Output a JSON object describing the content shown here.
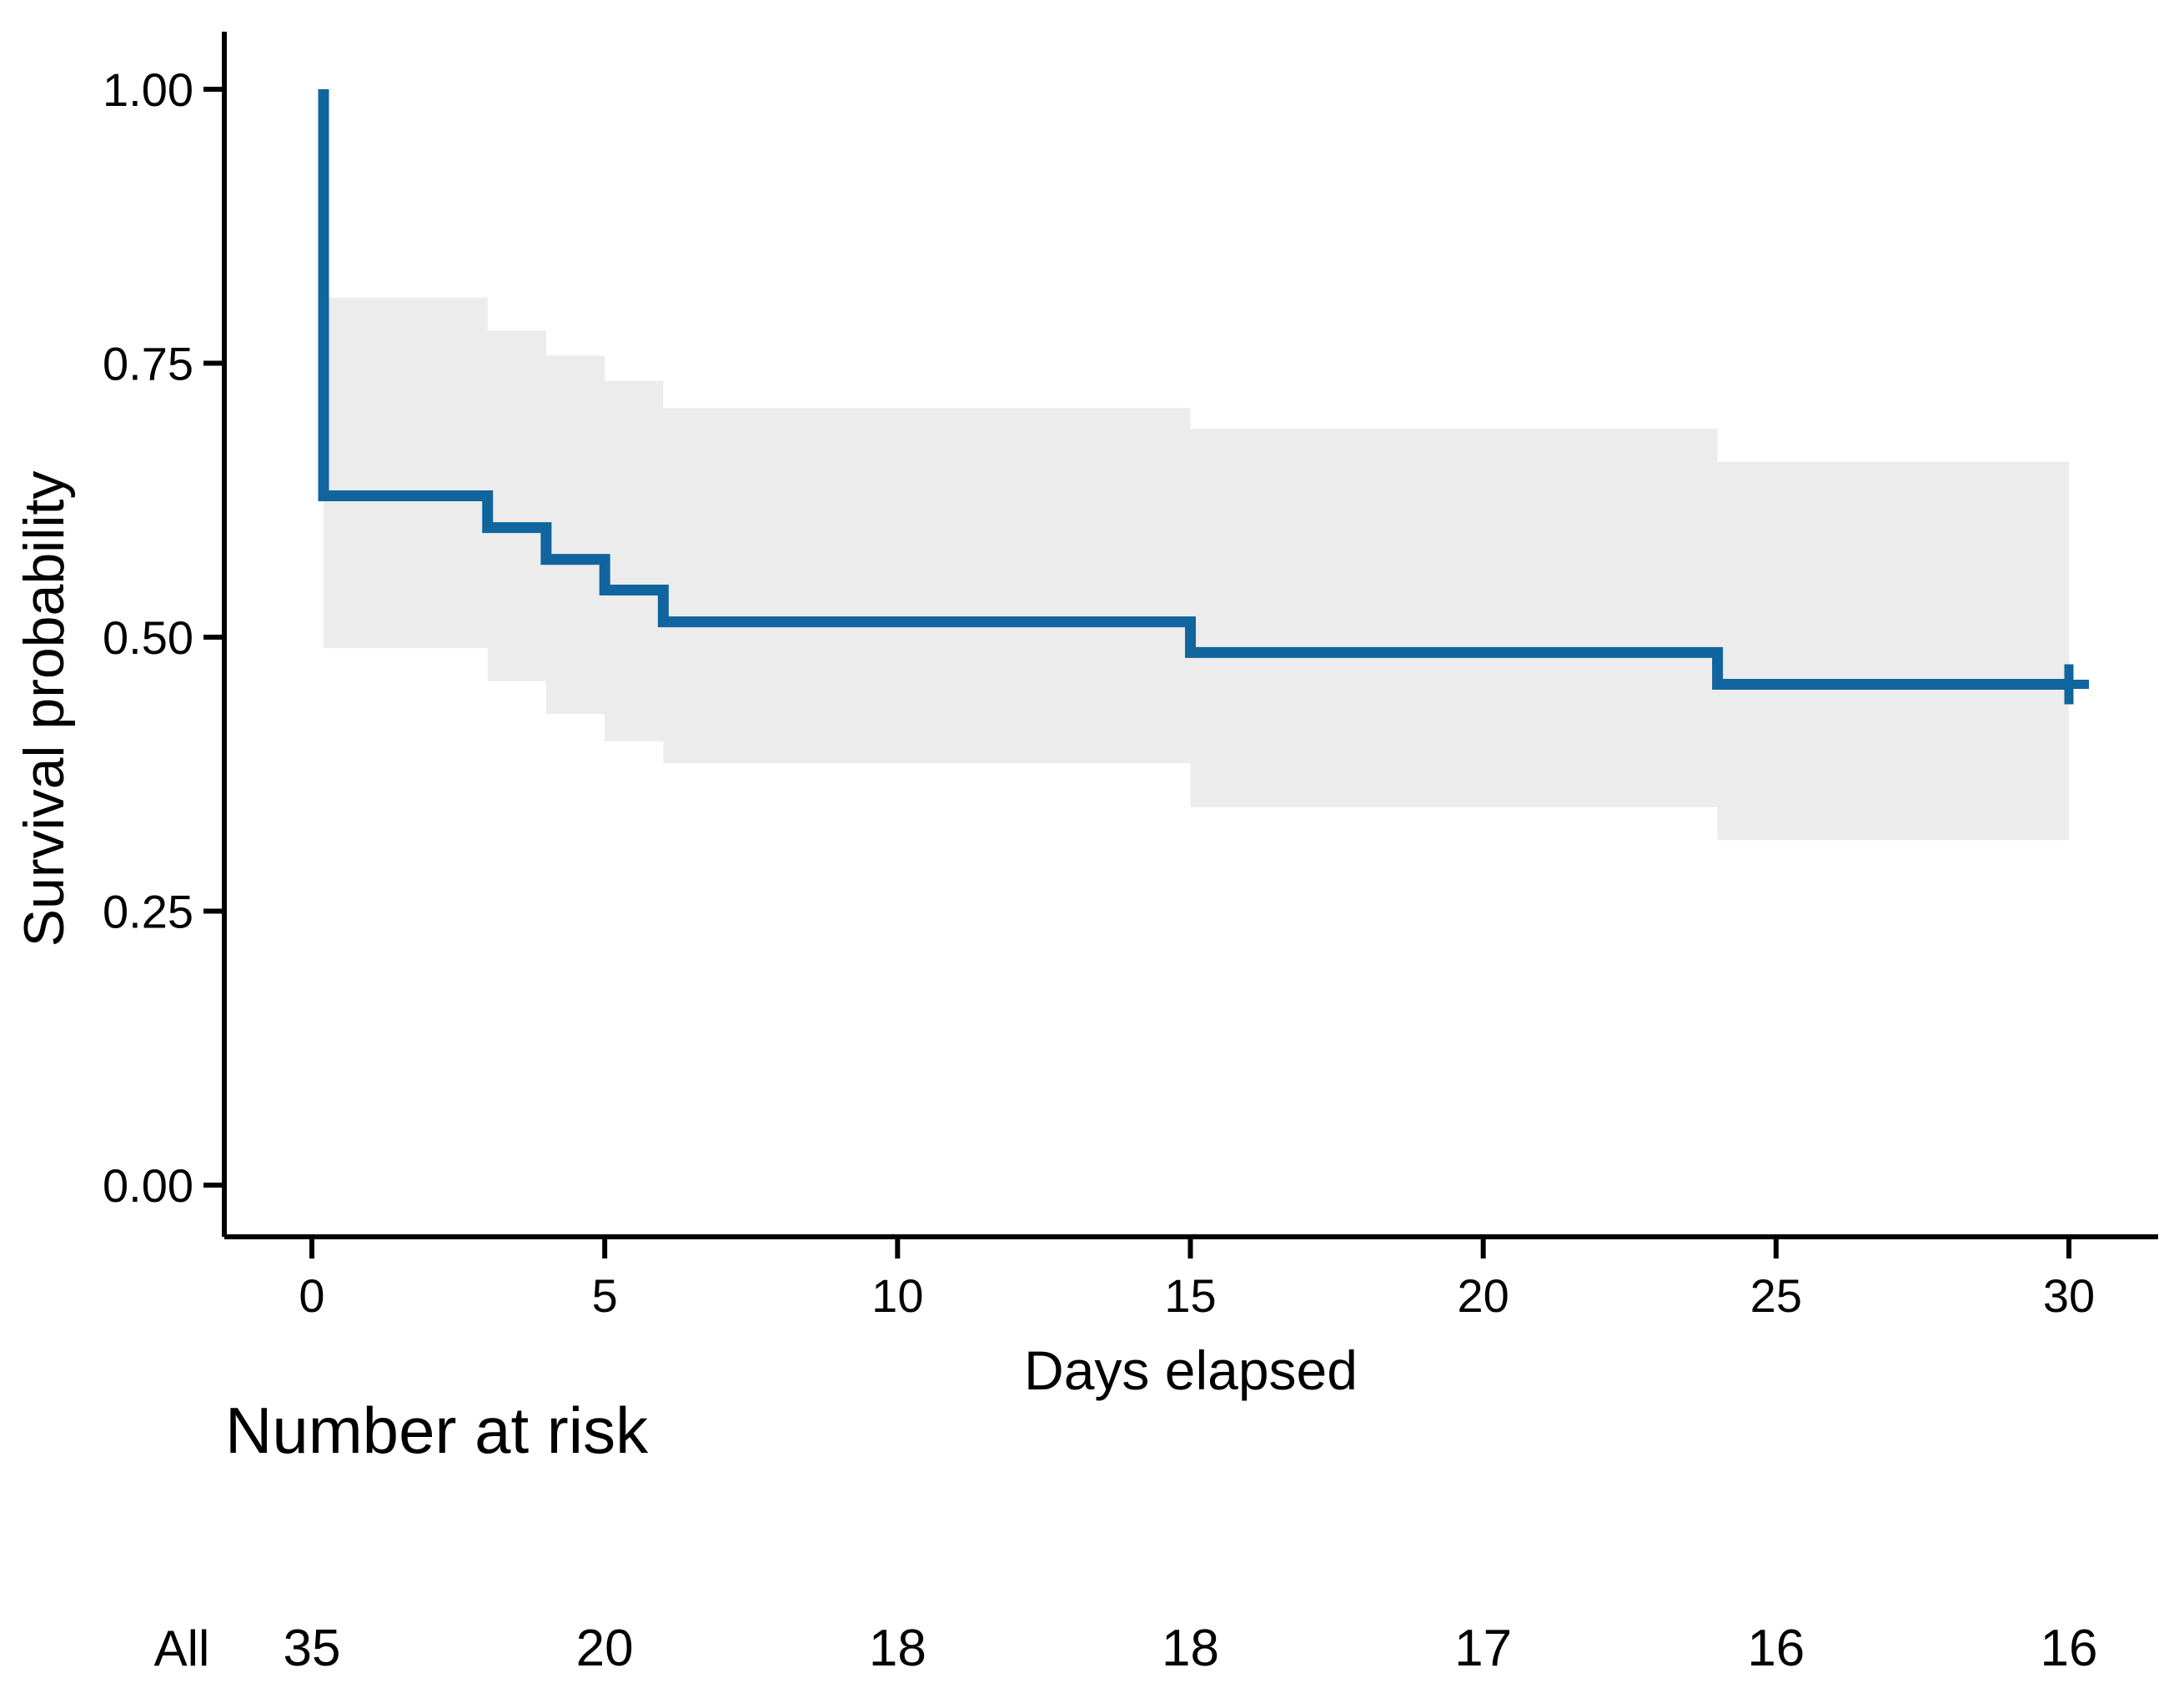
{
  "chart_data": {
    "type": "line",
    "subtype": "kaplan-meier-step-curve",
    "title": "",
    "xlabel": "Days elapsed",
    "ylabel": "Survival probability",
    "xlim": [
      0,
      30
    ],
    "ylim": [
      0,
      1
    ],
    "grid": false,
    "legend_position": "none",
    "xticks": [
      {
        "value": 0,
        "label": "0"
      },
      {
        "value": 5,
        "label": "5"
      },
      {
        "value": 10,
        "label": "10"
      },
      {
        "value": 15,
        "label": "15"
      },
      {
        "value": 20,
        "label": "20"
      },
      {
        "value": 25,
        "label": "25"
      },
      {
        "value": 30,
        "label": "30"
      }
    ],
    "yticks": [
      {
        "value": 1.0,
        "label": "1.00"
      },
      {
        "value": 0.75,
        "label": "0.75"
      },
      {
        "value": 0.5,
        "label": "0.50"
      },
      {
        "value": 0.25,
        "label": "0.25"
      },
      {
        "value": 0.0,
        "label": "0.00"
      }
    ],
    "series": [
      {
        "name": "All",
        "start": {
          "t": 0,
          "s": 1.0
        },
        "first_drop_t": 0.2,
        "segments": [
          {
            "t0": 0.2,
            "t1": 3,
            "s": 0.629,
            "lo": 0.49,
            "hi": 0.81
          },
          {
            "t0": 3,
            "t1": 4,
            "s": 0.6,
            "lo": 0.46,
            "hi": 0.78
          },
          {
            "t0": 4,
            "t1": 5,
            "s": 0.571,
            "lo": 0.43,
            "hi": 0.757
          },
          {
            "t0": 5,
            "t1": 6,
            "s": 0.543,
            "lo": 0.405,
            "hi": 0.734
          },
          {
            "t0": 6,
            "t1": 15,
            "s": 0.514,
            "lo": 0.385,
            "hi": 0.709
          },
          {
            "t0": 15,
            "t1": 24,
            "s": 0.486,
            "lo": 0.345,
            "hi": 0.69
          },
          {
            "t0": 24,
            "t1": 30,
            "s": 0.457,
            "lo": 0.315,
            "hi": 0.66
          }
        ],
        "censor_marks": [
          {
            "t": 30,
            "s": 0.457
          }
        ]
      }
    ],
    "risk_table": {
      "title": "Number at risk",
      "rows": [
        {
          "group": "All",
          "times": [
            0,
            5,
            10,
            15,
            20,
            25,
            30
          ],
          "counts": [
            35,
            20,
            18,
            18,
            17,
            16,
            16
          ]
        }
      ]
    }
  },
  "colors": {
    "curve": "#10659e",
    "ci_band": "#ececec",
    "axis": "#000000",
    "risk_group_label": "#10659e",
    "background": "#ffffff"
  }
}
